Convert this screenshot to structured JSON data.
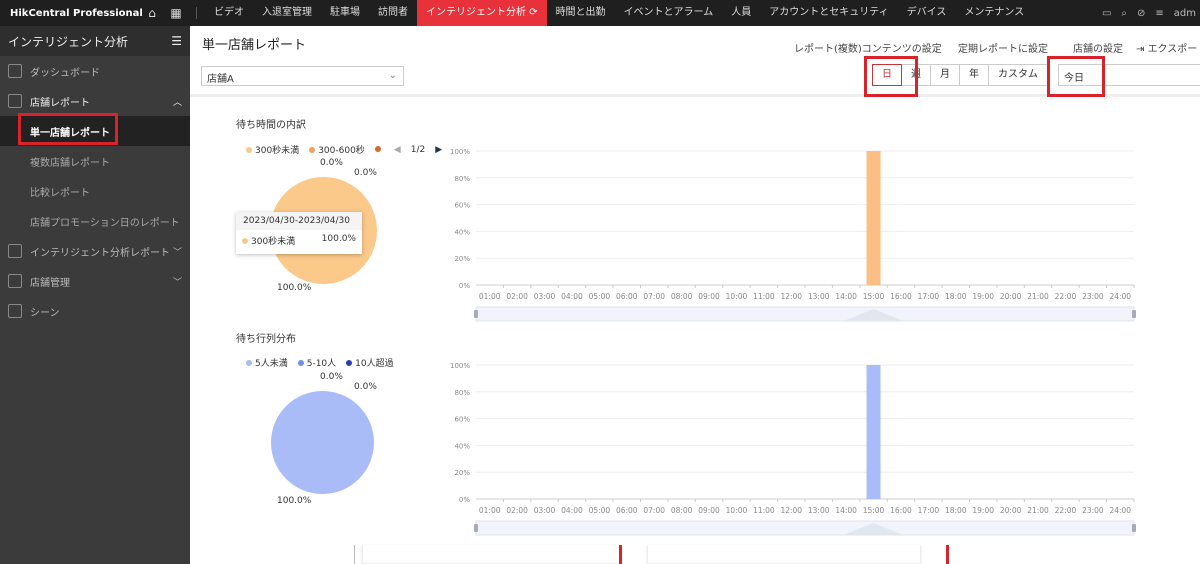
{
  "topbar": {
    "app_name": "HikCentral Professional",
    "nav": [
      "ビデオ",
      "入退室管理",
      "駐車場",
      "訪問者",
      "インテリジェント分析",
      "時間と出勤",
      "イベントとアラーム",
      "人員",
      "アカウントとセキュリティ",
      "デバイス",
      "メンテナンス"
    ],
    "active_index": 4,
    "user": "adm",
    "accent": "#e8313a"
  },
  "sidebar": {
    "title": "インテリジェント分析",
    "items": [
      {
        "label": "ダッシュボード"
      },
      {
        "label": "店舗レポート",
        "sub": [
          "単一店舗レポート",
          "複数店舗レポート",
          "比較レポート",
          "店舗プロモーション日のレポート"
        ],
        "active_sub": 0
      },
      {
        "label": "インテリジェント分析レポート"
      },
      {
        "label": "店舗管理"
      },
      {
        "label": "シーン"
      }
    ]
  },
  "main": {
    "title": "単一店舗レポート",
    "store_select": "店舗A",
    "links": {
      "content": "レポート(複数)コンテンツの設定",
      "schedule": "定期レポートに設定",
      "store": "店舗の設定",
      "export": "エクスポート"
    },
    "periods": [
      "日",
      "週",
      "月",
      "年",
      "カスタム"
    ],
    "active_period": 0,
    "date_range": "今日"
  },
  "wait_time": {
    "title": "待ち時間の内訳",
    "legend": [
      {
        "label": "300秒未満",
        "color": "#f9c98b"
      },
      {
        "label": "300-600秒",
        "color": "#f0a060"
      },
      {
        "label": "",
        "color": "#d9692a"
      }
    ],
    "page": "1/2",
    "pie_labels": [
      "0.0%",
      "0.0%",
      "100.0%"
    ],
    "tooltip": {
      "date": "2023/04/30-2023/04/30",
      "label": "300秒未満",
      "value": "100.0%"
    }
  },
  "queue": {
    "title": "待ち行列分布",
    "legend": [
      {
        "label": "5人未満",
        "color": "#aabcf5"
      },
      {
        "label": "5-10人",
        "color": "#6f8ee8"
      },
      {
        "label": "10人超過",
        "color": "#2a3fa8"
      }
    ],
    "pie_labels": [
      "0.0%",
      "0.0%",
      "100.0%"
    ]
  },
  "chart_data": [
    {
      "type": "bar",
      "categories": [
        "01:00",
        "02:00",
        "03:00",
        "04:00",
        "05:00",
        "06:00",
        "07:00",
        "08:00",
        "09:00",
        "10:00",
        "11:00",
        "12:00",
        "13:00",
        "14:00",
        "15:00",
        "16:00",
        "17:00",
        "18:00",
        "19:00",
        "20:00",
        "21:00",
        "22:00",
        "23:00",
        "24:00"
      ],
      "values": [
        0,
        0,
        0,
        0,
        0,
        0,
        0,
        0,
        0,
        0,
        0,
        0,
        0,
        0,
        100,
        0,
        0,
        0,
        0,
        0,
        0,
        0,
        0,
        0
      ],
      "ylim": [
        0,
        100
      ],
      "yticks": [
        "0%",
        "20%",
        "40%",
        "60%",
        "80%",
        "100%"
      ],
      "color": "#fbbf86",
      "grid": true
    },
    {
      "type": "bar",
      "categories": [
        "01:00",
        "02:00",
        "03:00",
        "04:00",
        "05:00",
        "06:00",
        "07:00",
        "08:00",
        "09:00",
        "10:00",
        "11:00",
        "12:00",
        "13:00",
        "14:00",
        "15:00",
        "16:00",
        "17:00",
        "18:00",
        "19:00",
        "20:00",
        "21:00",
        "22:00",
        "23:00",
        "24:00"
      ],
      "values": [
        0,
        0,
        0,
        0,
        0,
        0,
        0,
        0,
        0,
        0,
        0,
        0,
        0,
        0,
        100,
        0,
        0,
        0,
        0,
        0,
        0,
        0,
        0,
        0
      ],
      "ylim": [
        0,
        100
      ],
      "yticks": [
        "0%",
        "20%",
        "40%",
        "60%",
        "80%",
        "100%"
      ],
      "color": "#a9bcf7",
      "grid": true
    }
  ]
}
